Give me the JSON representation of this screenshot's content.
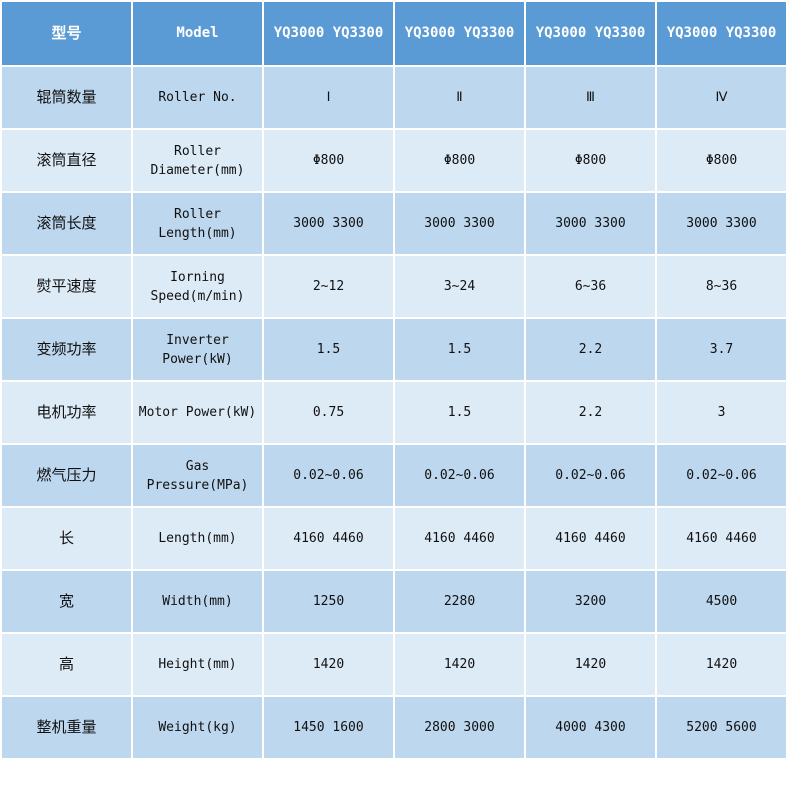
{
  "header": {
    "label_cn": "型号",
    "label_en": "Model",
    "models": [
      "YQ3000 YQ3300",
      "YQ3000 YQ3300",
      "YQ3000 YQ3300",
      "YQ3000 YQ3300"
    ]
  },
  "rows": [
    {
      "cn": "辊筒数量",
      "en": "Roller No.",
      "values": [
        "Ⅰ",
        "Ⅱ",
        "Ⅲ",
        "Ⅳ"
      ]
    },
    {
      "cn": "滚筒直径",
      "en": "Roller Diameter(mm)",
      "values": [
        "Φ800",
        "Φ800",
        "Φ800",
        "Φ800"
      ]
    },
    {
      "cn": "滚筒长度",
      "en": "Roller Length(mm)",
      "values": [
        "3000 3300",
        "3000 3300",
        "3000 3300",
        "3000 3300"
      ]
    },
    {
      "cn": "熨平速度",
      "en": "Iorning Speed(m/min)",
      "values": [
        "2~12",
        "3~24",
        "6~36",
        "8~36"
      ]
    },
    {
      "cn": "变频功率",
      "en": "Inverter Power(kW)",
      "values": [
        "1.5",
        "1.5",
        "2.2",
        "3.7"
      ]
    },
    {
      "cn": "电机功率",
      "en": "Motor Power(kW)",
      "values": [
        "0.75",
        "1.5",
        "2.2",
        "3"
      ]
    },
    {
      "cn": "燃气压力",
      "en": "Gas Pressure(MPa)",
      "values": [
        "0.02~0.06",
        "0.02~0.06",
        "0.02~0.06",
        "0.02~0.06"
      ]
    },
    {
      "cn": "长",
      "en": "Length(mm)",
      "values": [
        "4160 4460",
        "4160 4460",
        "4160 4460",
        "4160 4460"
      ]
    },
    {
      "cn": "宽",
      "en": "Width(mm)",
      "values": [
        "1250",
        "2280",
        "3200",
        "4500"
      ]
    },
    {
      "cn": "高",
      "en": "Height(mm)",
      "values": [
        "1420",
        "1420",
        "1420",
        "1420"
      ]
    },
    {
      "cn": "整机重量",
      "en": "Weight(kg)",
      "values": [
        "1450 1600",
        "2800 3000",
        "4000 4300",
        "5200 5600"
      ]
    }
  ],
  "colors": {
    "header": "#5b9bd5",
    "row_dark": "#bdd7ee",
    "row_light": "#ddebf7"
  }
}
